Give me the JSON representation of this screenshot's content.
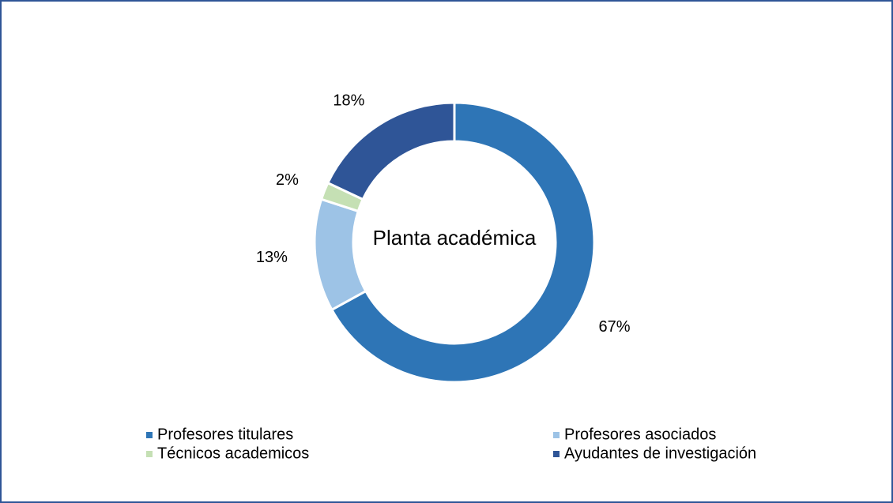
{
  "chart_data": {
    "type": "pie",
    "title": "Planta académica",
    "categories": [
      "Profesores titulares",
      "Profesores asociados",
      "Técnicos academicos",
      "Ayudantes de investigación"
    ],
    "values": [
      67,
      13,
      2,
      18
    ],
    "value_labels": [
      "67%",
      "13%",
      "2%",
      "18%"
    ],
    "colors": [
      "#2e75b6",
      "#9dc3e6",
      "#c5e0b4",
      "#2f5597"
    ],
    "donut": true,
    "legend": "bottom"
  }
}
